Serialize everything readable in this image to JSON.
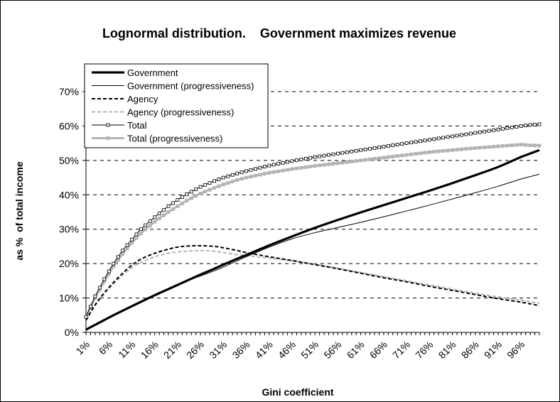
{
  "chart_data": {
    "type": "line",
    "title": "Lognormal distribution.    Government maximizes revenue",
    "xlabel": "Gini coefficient",
    "ylabel": "as %  of total income",
    "ylim": [
      0,
      70
    ],
    "ytick_labels": [
      "0%",
      "10%",
      "20%",
      "30%",
      "40%",
      "50%",
      "60%",
      "70%"
    ],
    "ytick_values": [
      0,
      10,
      20,
      30,
      40,
      50,
      60,
      70
    ],
    "xlim": [
      1,
      100
    ],
    "xtick_labels": [
      "1%",
      "6%",
      "11%",
      "16%",
      "21%",
      "26%",
      "31%",
      "36%",
      "41%",
      "46%",
      "51%",
      "56%",
      "61%",
      "66%",
      "71%",
      "76%",
      "81%",
      "86%",
      "91%",
      "96%"
    ],
    "xtick_values": [
      1,
      6,
      11,
      16,
      21,
      26,
      31,
      36,
      41,
      46,
      51,
      56,
      61,
      66,
      71,
      76,
      81,
      86,
      91,
      96
    ],
    "grid": "horizontal dashed",
    "legend_position": "top-left",
    "x": [
      1,
      3,
      5,
      7,
      9,
      11,
      13,
      16,
      19,
      21,
      23,
      26,
      29,
      31,
      34,
      36,
      41,
      46,
      51,
      56,
      61,
      66,
      71,
      76,
      81,
      86,
      91,
      96,
      98,
      100
    ],
    "series": [
      {
        "name": "Government",
        "color": "#000000",
        "style": "thick-solid",
        "values": [
          0.8,
          2.2,
          3.6,
          5.0,
          6.3,
          7.6,
          8.9,
          10.8,
          12.6,
          13.8,
          15.0,
          16.8,
          18.5,
          19.7,
          21.4,
          22.5,
          25.3,
          27.9,
          30.4,
          32.7,
          34.9,
          37.0,
          39.1,
          41.2,
          43.4,
          45.7,
          48.1,
          51.0,
          52.0,
          53.0
        ]
      },
      {
        "name": "Government (progressiveness)",
        "color": "#000000",
        "style": "thin-solid",
        "values": [
          0.8,
          2.2,
          3.6,
          5.0,
          6.3,
          7.6,
          8.9,
          10.8,
          12.6,
          13.8,
          15.0,
          16.4,
          17.9,
          19.0,
          20.8,
          22.0,
          24.8,
          27.2,
          29.0,
          30.5,
          32.0,
          33.6,
          35.3,
          37.0,
          38.8,
          40.6,
          42.5,
          44.6,
          45.3,
          46.0
        ]
      },
      {
        "name": "Agency",
        "color": "#000000",
        "style": "dashed",
        "values": [
          3.5,
          8.0,
          11.5,
          14.5,
          17.2,
          19.5,
          21.3,
          23.0,
          24.2,
          24.8,
          25.1,
          25.2,
          25.0,
          24.6,
          23.8,
          23.2,
          22.0,
          20.9,
          19.7,
          18.5,
          17.2,
          15.9,
          14.7,
          13.4,
          12.2,
          11.0,
          9.8,
          8.8,
          8.3,
          7.8
        ]
      },
      {
        "name": "Agency (progressiveness)",
        "color": "#b4b4b4",
        "style": "dashed",
        "values": [
          3.5,
          7.8,
          11.2,
          14.0,
          16.6,
          18.8,
          20.4,
          22.0,
          23.0,
          23.4,
          23.6,
          23.8,
          23.6,
          23.2,
          22.6,
          22.3,
          21.6,
          20.8,
          19.8,
          18.6,
          17.4,
          16.2,
          15.0,
          13.8,
          12.6,
          11.4,
          10.3,
          9.4,
          8.9,
          8.5
        ]
      },
      {
        "name": "Total",
        "color": "#000000",
        "style": "thin-solid-open-square",
        "values": [
          4.5,
          10.5,
          15.5,
          20.0,
          23.8,
          27.0,
          30.0,
          33.5,
          36.7,
          38.5,
          40.2,
          42.3,
          44.0,
          45.0,
          46.2,
          46.9,
          48.5,
          49.8,
          51.0,
          52.0,
          53.0,
          54.0,
          55.0,
          56.0,
          57.0,
          58.0,
          59.0,
          60.0,
          60.3,
          60.5
        ]
      },
      {
        "name": "Total (progressiveness)",
        "color": "#b4b4b4",
        "style": "thick-solid-filled-square",
        "values": [
          4.5,
          10.0,
          14.8,
          19.2,
          22.8,
          26.0,
          28.8,
          32.2,
          35.0,
          36.7,
          38.3,
          40.4,
          42.0,
          43.0,
          44.3,
          45.0,
          46.4,
          47.5,
          48.4,
          49.2,
          50.0,
          50.8,
          51.6,
          52.4,
          53.0,
          53.6,
          54.1,
          54.6,
          54.4,
          54.3
        ]
      }
    ]
  }
}
